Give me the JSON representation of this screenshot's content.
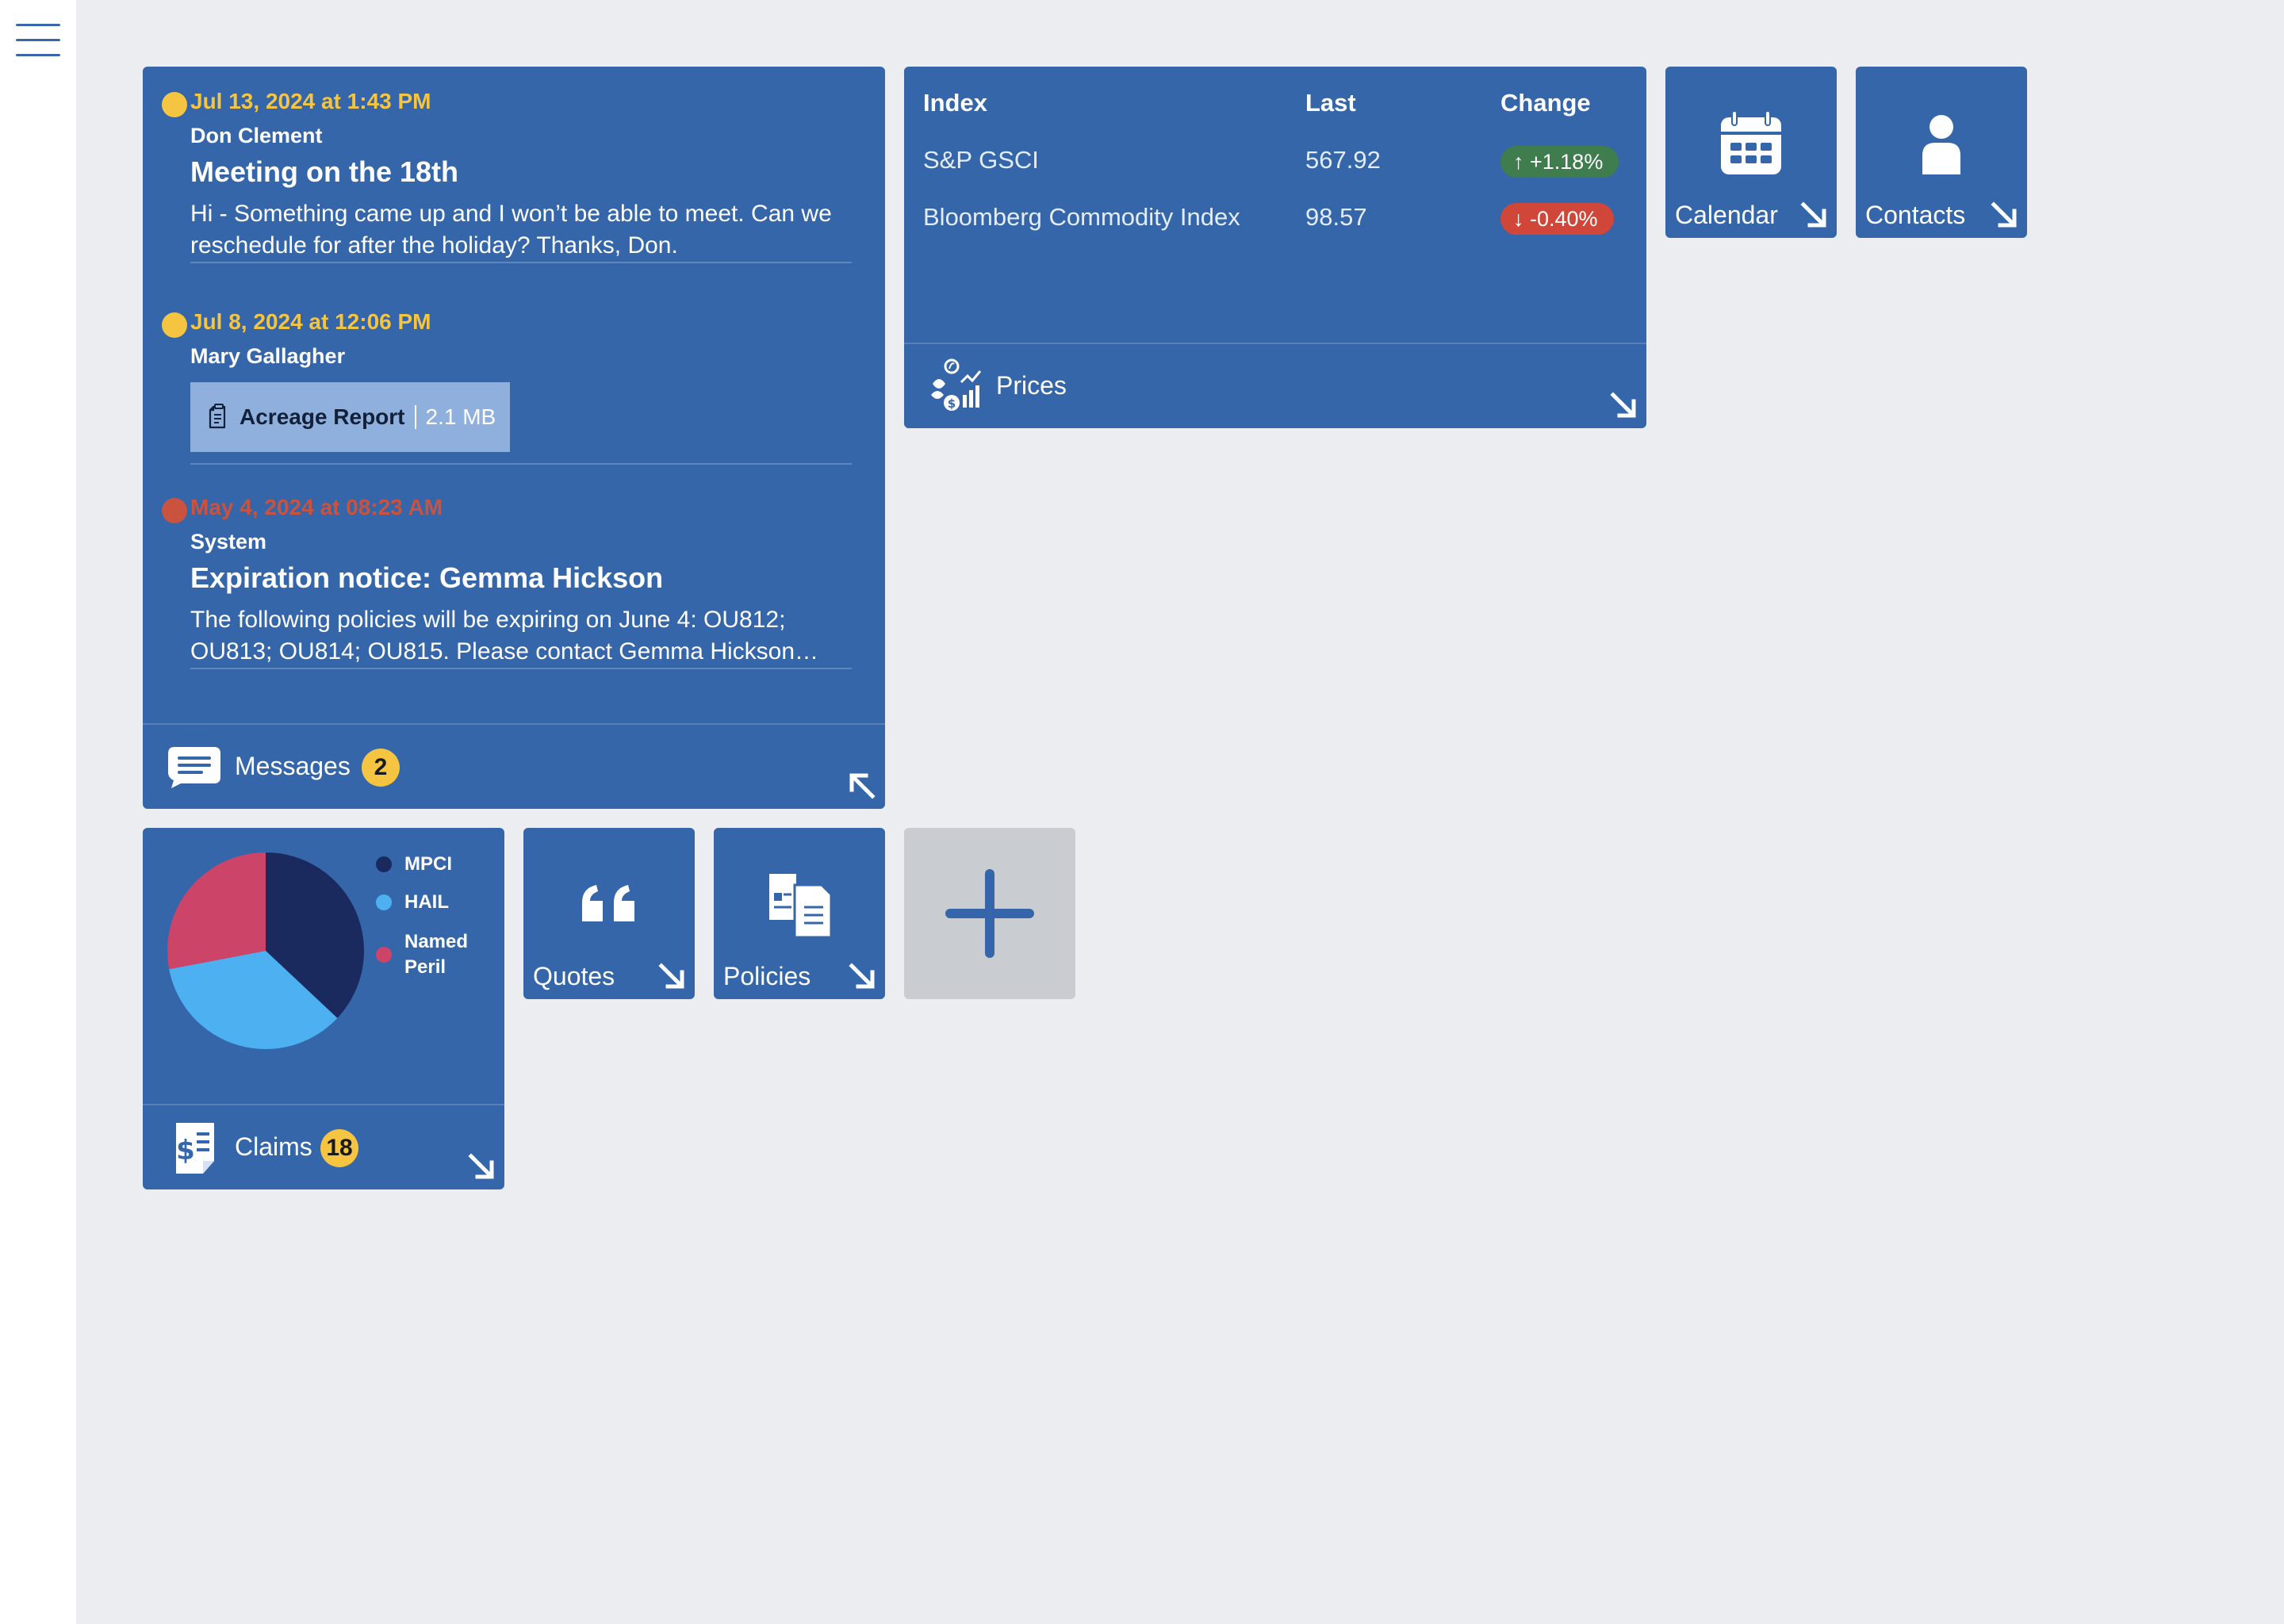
{
  "nav": {
    "menu_icon": "hamburger-menu-icon"
  },
  "messages": {
    "items": [
      {
        "date": "Jul 13, 2024 at 1:43 PM",
        "status_color": "#f5c542",
        "sender": "Don Clement",
        "subject": "Meeting on the 18th",
        "body": "Hi - Something came up and I won’t be able to meet. Can we reschedule for after the holiday? Thanks, Don."
      },
      {
        "date": "Jul 8, 2024 at 12:06 PM",
        "status_color": "#f5c542",
        "sender": "Mary Gallagher",
        "attachment": {
          "name": "Acreage Report",
          "size": "2.1 MB",
          "icon": "document-icon"
        }
      },
      {
        "date": "May 4, 2024 at 08:23 AM",
        "status_color": "#c9533e",
        "sender": "System",
        "subject": "Expiration notice: Gemma Hickson",
        "body": "The following policies will be expiring on June 4: OU812; OU813; OU814; OU815. Please contact Gemma Hickson…"
      }
    ],
    "footer_label": "Messages",
    "badge": "2",
    "footer_icon": "chat-bubble-icon",
    "corner_icon": "collapse-arrow-icon"
  },
  "prices": {
    "headers": {
      "index": "Index",
      "last": "Last",
      "change": "Change"
    },
    "rows": [
      {
        "index": "S&P GSCI",
        "last": "567.92",
        "change": "↑ +1.18%",
        "direction": "up"
      },
      {
        "index": "Bloomberg Commodity Index",
        "last": "98.57",
        "change": "↓ -0.40%",
        "direction": "down"
      }
    ],
    "footer_label": "Prices",
    "footer_icon": "commodity-prices-icon",
    "corner_icon": "expand-arrow-icon"
  },
  "calendar": {
    "label": "Calendar",
    "icon": "calendar-icon"
  },
  "contacts": {
    "label": "Contacts",
    "icon": "person-icon"
  },
  "quotes": {
    "label": "Quotes",
    "icon": "quote-icon"
  },
  "policies": {
    "label": "Policies",
    "icon": "documents-icon"
  },
  "add_tile": {
    "icon": "plus-icon"
  },
  "claims": {
    "footer_label": "Claims",
    "badge": "18",
    "footer_icon": "claim-document-icon",
    "chart_data": {
      "type": "pie",
      "title": "",
      "categories": [
        "MPCI",
        "HAIL",
        "Named Peril"
      ],
      "values": [
        37,
        35,
        28
      ],
      "colors": [
        "#1b2a5e",
        "#4db0f0",
        "#cc4468"
      ],
      "legend": "right"
    }
  },
  "colors": {
    "tile": "#3466a9",
    "canvas": "#ecedf0",
    "accent_yellow": "#f5c542",
    "alert_red": "#c9533e",
    "up_green": "#3f7d4f",
    "down_red": "#d0473a"
  }
}
